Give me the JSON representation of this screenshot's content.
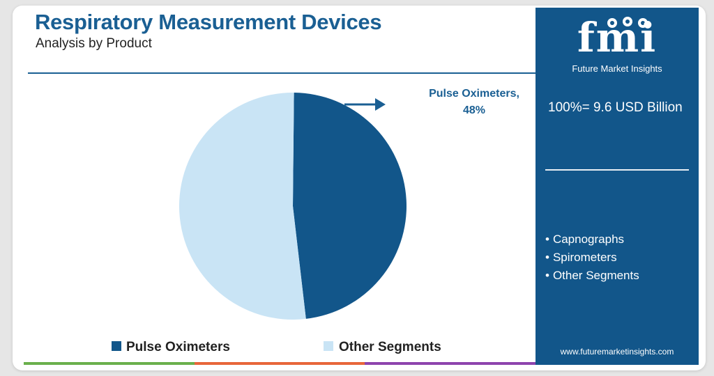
{
  "header": {
    "title": "Respiratory Measurement Devices",
    "subtitle": "Analysis by Product"
  },
  "chart_data": {
    "type": "pie",
    "categories": [
      "Pulse Oximeters",
      "Other Segments"
    ],
    "values": [
      48,
      52
    ],
    "colors": [
      "#12568a",
      "#c9e4f5"
    ],
    "annotations": [
      {
        "text_line1": "Pulse Oximeters,",
        "text_line2": "48%",
        "target": "Pulse Oximeters"
      }
    ],
    "legend": {
      "placement": "bottom",
      "entries": [
        "Pulse Oximeters",
        "Other Segments"
      ]
    }
  },
  "sidebar": {
    "logo_text": "fmi",
    "logo_subtitle": "Future Market Insights",
    "total_label": "100%= 9.6 USD Billion",
    "segments": [
      "Capnographs",
      "Spirometers",
      "Other Segments"
    ],
    "website": "www.futuremarketinsights.com",
    "background_color": "#12568a"
  },
  "footer": {
    "bar_colors": [
      "#6ab04c",
      "#e8663a",
      "#8e44ad"
    ]
  }
}
